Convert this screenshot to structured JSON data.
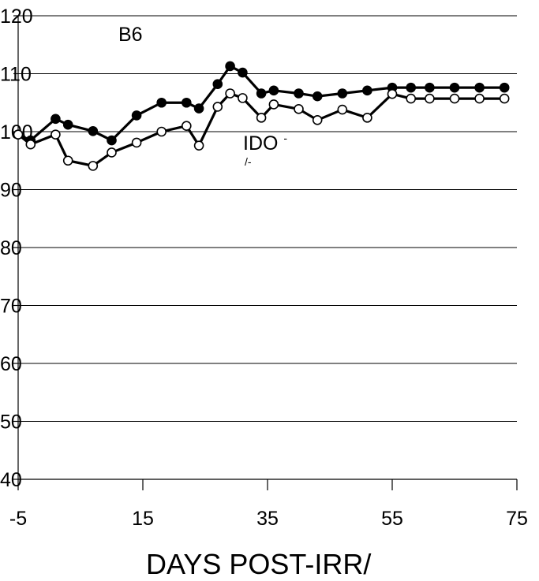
{
  "chart_data": {
    "type": "line",
    "title": "",
    "xlabel": "DAYS POST-IRR/",
    "ylabel": "",
    "xlim": [
      -5,
      75
    ],
    "ylim": [
      40,
      120
    ],
    "xticks": [
      "-5",
      "15",
      "35",
      "55",
      "75"
    ],
    "yticks": [
      "40",
      "50",
      "60",
      "70",
      "80",
      "90",
      "100",
      "110",
      "120"
    ],
    "grid": "horizontal",
    "series": [
      {
        "name": "B6",
        "marker": "filled-circle",
        "x": [
          -5,
          -3,
          1,
          3,
          7,
          10,
          14,
          18,
          22,
          24,
          27,
          29,
          31,
          34,
          36,
          40,
          43,
          47,
          51,
          55,
          58,
          61,
          65,
          69,
          73
        ],
        "y": [
          99.5,
          98.5,
          102.2,
          101.2,
          100.1,
          98.5,
          102.8,
          105,
          105,
          104,
          108.2,
          111.3,
          110.2,
          106.6,
          107.1,
          106.6,
          106.1,
          106.6,
          107.1,
          107.6,
          107.6,
          107.6,
          107.6,
          107.6,
          107.6
        ]
      },
      {
        "name_parts": [
          "IDO",
          "-",
          "/-"
        ],
        "marker": "open-circle",
        "x": [
          -5,
          -3,
          1,
          3,
          7,
          10,
          14,
          18,
          22,
          24,
          27,
          29,
          31,
          34,
          36,
          40,
          43,
          47,
          51,
          55,
          58,
          61,
          65,
          69,
          73
        ],
        "y": [
          99.5,
          97.8,
          99.5,
          95,
          94.1,
          96.4,
          98.1,
          100,
          101,
          97.6,
          104.3,
          106.6,
          105.8,
          102.4,
          104.7,
          103.9,
          102,
          103.8,
          102.4,
          106.5,
          105.7,
          105.7,
          105.7,
          105.7,
          105.7
        ]
      }
    ]
  }
}
